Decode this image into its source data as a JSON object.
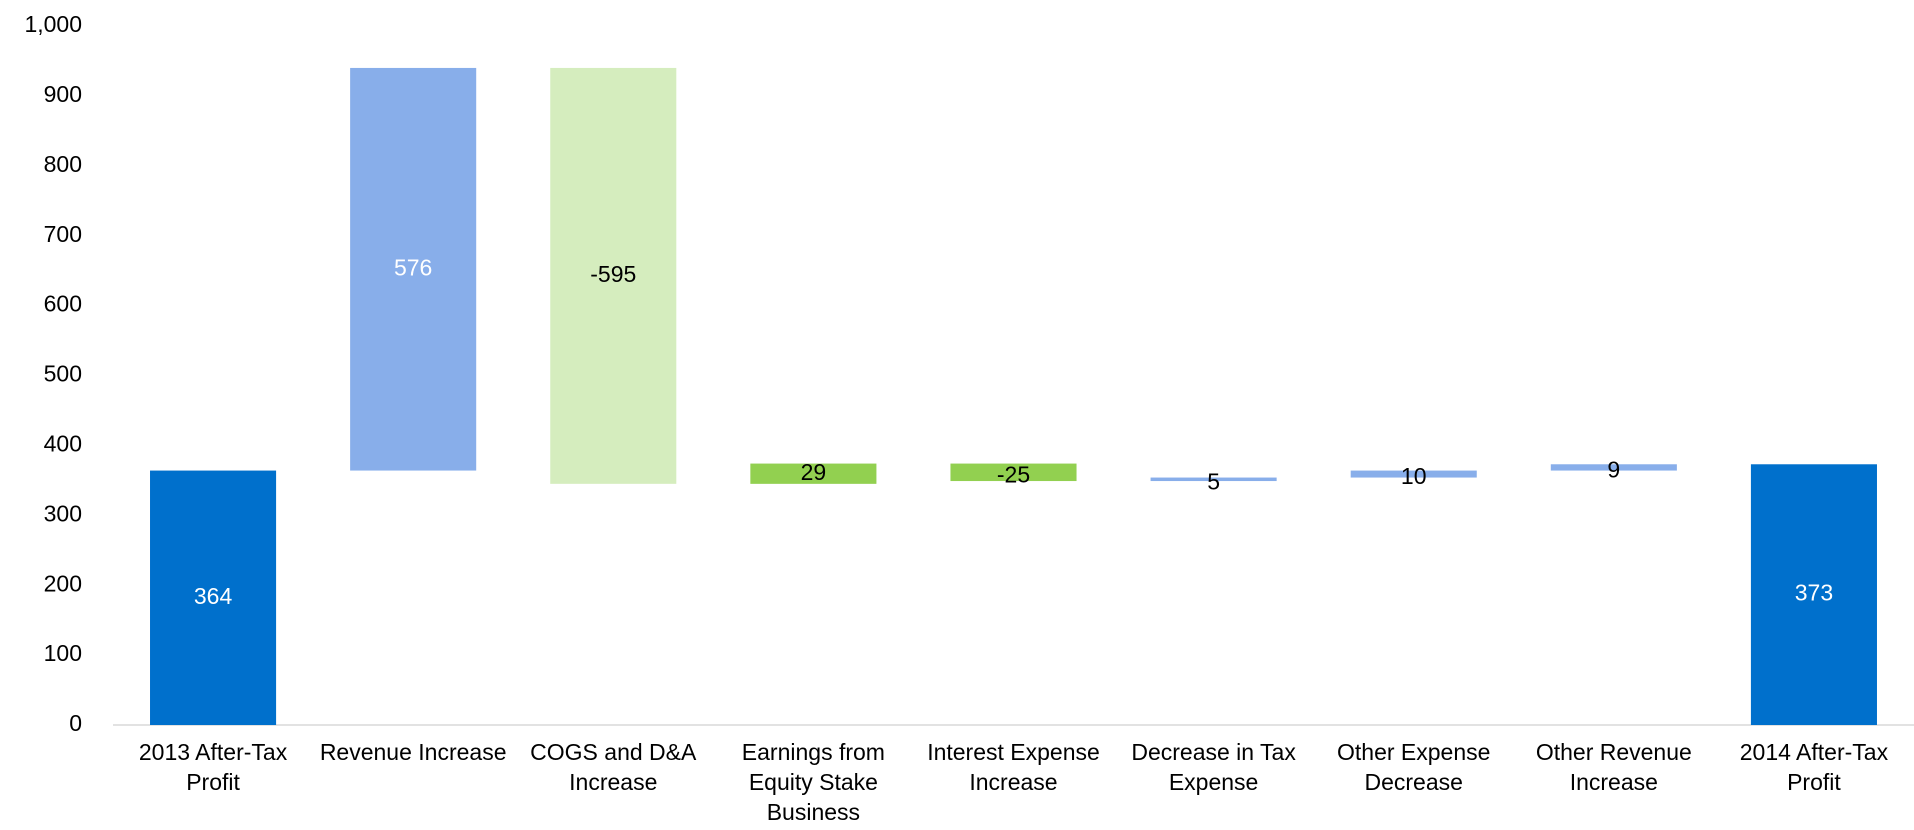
{
  "chart_data": {
    "type": "waterfall",
    "categories": [
      "2013 After-Tax Profit",
      "Revenue Increase",
      "COGS and D&A Increase",
      "Earnings from Equity Stake Business",
      "Interest Expense Increase",
      "Decrease in Tax Expense",
      "Other Expense Decrease",
      "Other Revenue Increase",
      "2014 After-Tax Profit"
    ],
    "values": [
      364,
      576,
      -595,
      29,
      -25,
      5,
      10,
      9,
      373
    ],
    "totals": [
      true,
      false,
      false,
      false,
      false,
      false,
      false,
      false,
      true
    ],
    "colors": [
      "#0070cc",
      "#88aeea",
      "#d5edbe",
      "#92d050",
      "#92d050",
      "#88aeea",
      "#88aeea",
      "#88aeea",
      "#0070cc"
    ],
    "ylim": [
      0,
      1000
    ],
    "yticks": [
      0,
      100,
      200,
      300,
      400,
      500,
      600,
      700,
      800,
      900,
      {
        "value": 1000,
        "label": "1,000"
      }
    ],
    "grid": false
  }
}
